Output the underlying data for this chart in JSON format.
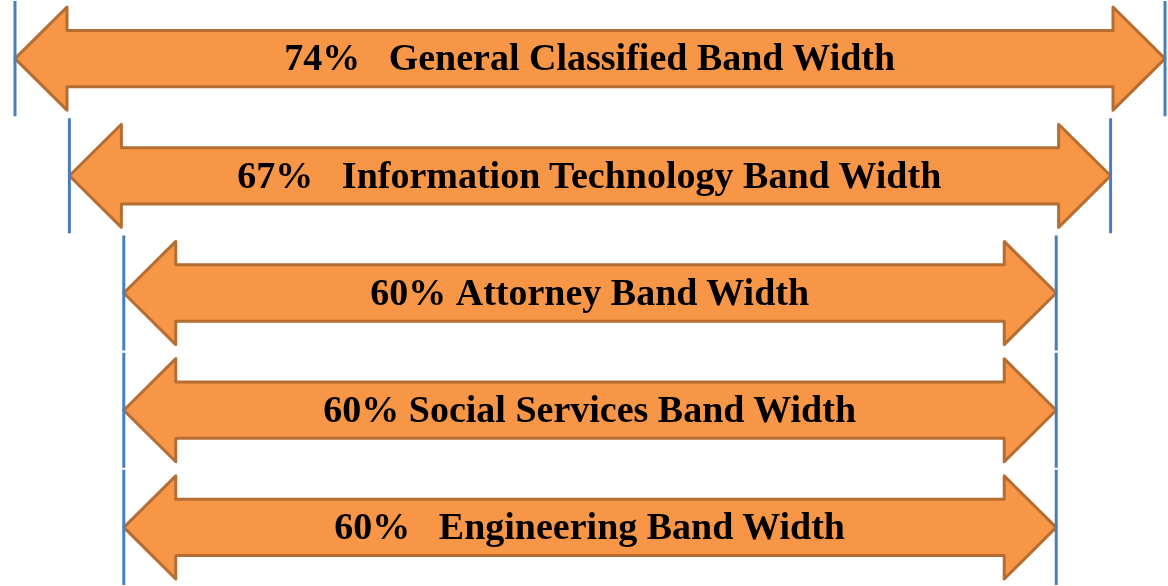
{
  "chart_data": {
    "type": "other",
    "categories": [
      "General Classified Band Width",
      "Information Technology Band Width",
      "Attorney Band Width",
      "Social Services Band Width",
      "Engineering Band Width"
    ],
    "values": [
      74,
      67,
      60,
      60,
      60
    ],
    "value_labels": [
      "74%   ",
      "67%   ",
      "60% ",
      "60% ",
      "60%   "
    ],
    "color": "#f79646"
  }
}
